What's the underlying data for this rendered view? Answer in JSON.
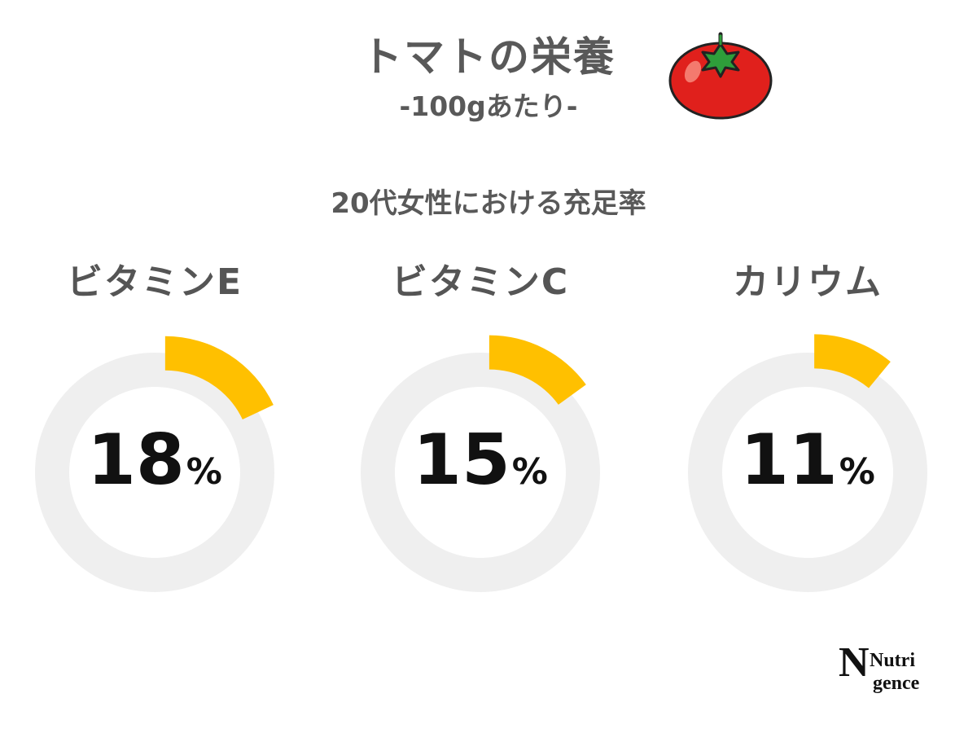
{
  "header": {
    "title": "トマトの栄養",
    "subtitle": "-100gあたり-"
  },
  "colors": {
    "accent": "#FFC000",
    "track": "#EFEFEF",
    "text": "#595959",
    "value_text": "#111111",
    "tomato_red": "#E0201C",
    "tomato_leaf": "#2E9E3A"
  },
  "chart_data": {
    "type": "donut",
    "title": "20代女性における充足率",
    "unit": "%",
    "items": [
      {
        "label": "ビタミンE",
        "value": 18,
        "value_text": "18",
        "unit_text": "%"
      },
      {
        "label": "ビタミンC",
        "value": 15,
        "value_text": "15",
        "unit_text": "%"
      },
      {
        "label": "カリウム",
        "value": 11,
        "value_text": "11",
        "unit_text": "%"
      }
    ]
  },
  "logo": {
    "line1": "Nutri",
    "line2": "gence"
  }
}
